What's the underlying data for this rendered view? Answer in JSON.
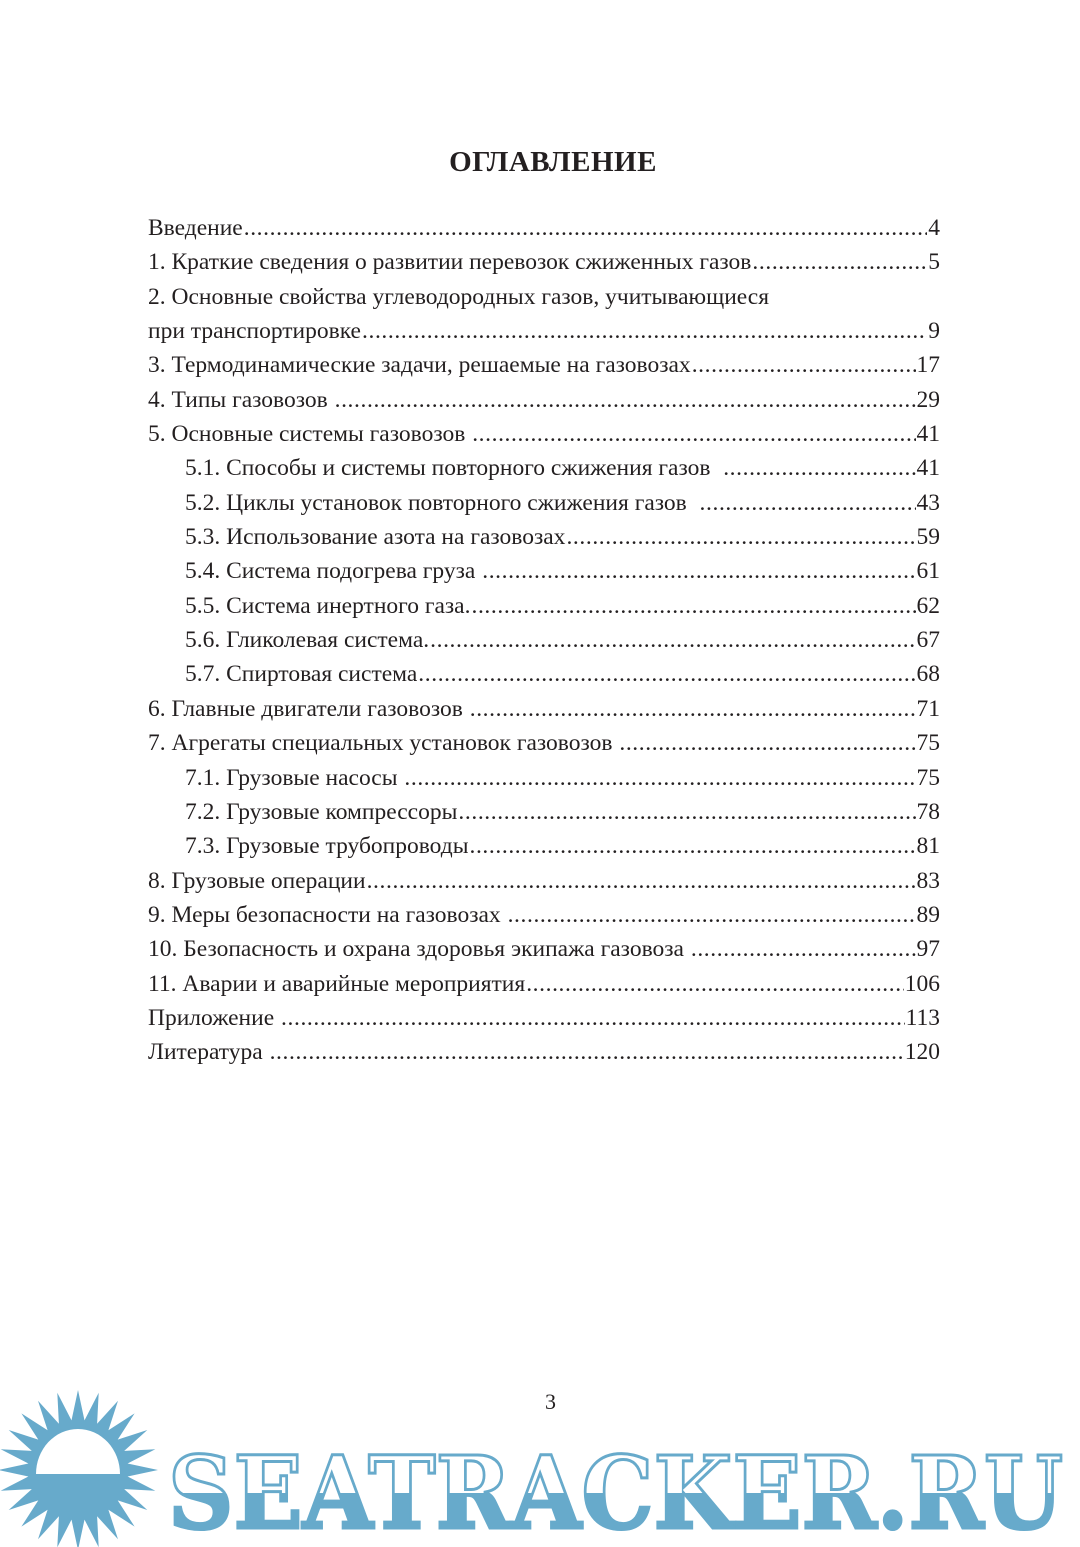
{
  "title": "ОГЛАВЛЕНИЕ",
  "entries": [
    {
      "label": "Введение",
      "page": "4",
      "level": 0
    },
    {
      "label": "1. Краткие сведения о развитии перевозок сжиженных газов",
      "page": "5",
      "level": 0
    },
    {
      "label": "2. Основные свойства углеводородных газов, учитывающиеся",
      "page": "",
      "level": 0
    },
    {
      "label": "при транспортировке",
      "page": "9",
      "level": 0
    },
    {
      "label": "3. Термодинамические задачи, решаемые на газовозах",
      "page": "17",
      "level": 0
    },
    {
      "label": "4. Типы газовозов ",
      "page": "29",
      "level": 0
    },
    {
      "label": "5. Основные системы газовозов ",
      "page": "41",
      "level": 0
    },
    {
      "label": "5.1. Способы и системы повторного сжижения газов  ",
      "page": "41",
      "level": 1
    },
    {
      "label": "5.2. Циклы установок повторного сжижения газов  ",
      "page": "43",
      "level": 1
    },
    {
      "label": "5.3. Использование азота на газовозах",
      "page": "59",
      "level": 1
    },
    {
      "label": "5.4. Система подогрева груза ",
      "page": "61",
      "level": 1
    },
    {
      "label": "5.5. Система инертного газа.",
      "page": "62",
      "level": 1
    },
    {
      "label": "5.6. Гликолевая система.",
      "page": "67",
      "level": 1
    },
    {
      "label": "5.7. Спиртовая система",
      "page": "68",
      "level": 1
    },
    {
      "label": "6. Главные двигатели газовозов ",
      "page": "71",
      "level": 0
    },
    {
      "label": "7. Агрегаты специальных установок газовозов ",
      "page": "75",
      "level": 0
    },
    {
      "label": "7.1. Грузовые насосы ",
      "page": "75",
      "level": 1
    },
    {
      "label": "7.2. Грузовые компрессоры",
      "page": "78",
      "level": 1
    },
    {
      "label": "7.3. Грузовые трубопроводы",
      "page": "81",
      "level": 1
    },
    {
      "label": "8. Грузовые операции",
      "page": "83",
      "level": 0
    },
    {
      "label": "9. Меры безопасности на газовозах ",
      "page": "89",
      "level": 0
    },
    {
      "label": "10. Безопасность и охрана здоровья экипажа газовоза ",
      "page": "97",
      "level": 0
    },
    {
      "label": "11. Аварии и аварийные мероприятия",
      "page": "106",
      "level": 0
    },
    {
      "label": "Приложение ",
      "page": "113",
      "level": 0
    },
    {
      "label": "Литература ",
      "page": "120",
      "level": 0
    }
  ],
  "page_number": "3",
  "watermark": {
    "text": "SEATRACKER.RU",
    "color": "#67aacb"
  }
}
